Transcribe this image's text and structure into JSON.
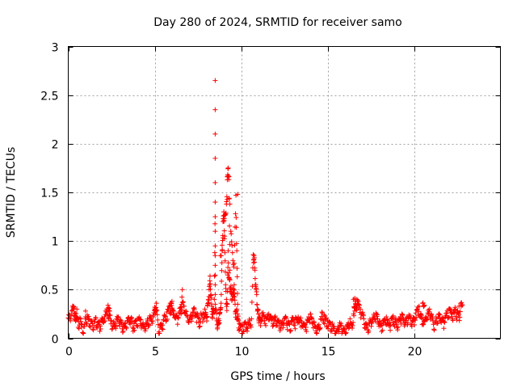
{
  "chart_data": {
    "type": "scatter",
    "title": "Day 280 of 2024, SRMTID for receiver samo",
    "xlabel": "GPS time / hours",
    "ylabel": "SRMTID / TECUs",
    "xlim": [
      0,
      25
    ],
    "ylim": [
      0,
      3
    ],
    "xticks": [
      0,
      5,
      10,
      15,
      20
    ],
    "xtick_labels": [
      "0",
      "5",
      "10",
      "15",
      "20"
    ],
    "yticks": [
      0,
      0.5,
      1,
      1.5,
      2,
      2.5,
      3
    ],
    "ytick_labels": [
      "0",
      "0.5",
      "1",
      "1.5",
      "2",
      "2.5",
      "3"
    ],
    "grid": true,
    "marker": "+",
    "color": "#ff0000",
    "series": [
      {
        "name": "samo",
        "x": [
          0.0,
          0.1,
          0.2,
          0.3,
          0.4,
          0.5,
          0.6,
          0.7,
          0.8,
          0.9,
          1.0,
          1.1,
          1.2,
          1.3,
          1.4,
          1.5,
          1.6,
          1.7,
          1.8,
          1.9,
          2.0,
          2.1,
          2.2,
          2.3,
          2.4,
          2.5,
          2.6,
          2.7,
          2.8,
          2.9,
          3.0,
          3.1,
          3.2,
          3.3,
          3.4,
          3.5,
          3.6,
          3.7,
          3.8,
          3.9,
          4.0,
          4.1,
          4.2,
          4.3,
          4.4,
          4.5,
          4.6,
          4.7,
          4.8,
          4.9,
          5.0,
          5.1,
          5.2,
          5.3,
          5.4,
          5.5,
          5.6,
          5.7,
          5.8,
          5.9,
          6.0,
          6.1,
          6.2,
          6.3,
          6.4,
          6.5,
          6.6,
          6.7,
          6.8,
          6.9,
          7.0,
          7.1,
          7.2,
          7.3,
          7.4,
          7.5,
          7.6,
          7.7,
          7.8,
          7.9,
          8.0,
          8.05,
          8.1,
          8.15,
          8.2,
          8.25,
          8.3,
          8.35,
          8.4,
          8.45,
          8.5,
          8.5,
          8.5,
          8.5,
          8.5,
          8.5,
          8.5,
          8.5,
          8.5,
          8.5,
          8.55,
          8.6,
          8.65,
          8.7,
          8.75,
          8.8,
          8.85,
          8.9,
          8.95,
          9.0,
          9.05,
          9.1,
          9.15,
          9.2,
          9.25,
          9.3,
          9.35,
          9.4,
          9.45,
          9.5,
          9.55,
          9.6,
          9.65,
          9.7,
          9.75,
          9.8,
          9.85,
          9.9,
          10.0,
          10.1,
          10.2,
          10.3,
          10.4,
          10.5,
          10.6,
          10.7,
          10.75,
          10.8,
          10.85,
          10.9,
          10.95,
          11.0,
          11.05,
          11.1,
          11.2,
          11.3,
          11.4,
          11.5,
          11.6,
          11.7,
          11.8,
          11.9,
          12.0,
          12.1,
          12.2,
          12.3,
          12.4,
          12.5,
          12.6,
          12.7,
          12.8,
          12.9,
          13.0,
          13.1,
          13.2,
          13.3,
          13.4,
          13.5,
          13.6,
          13.7,
          13.8,
          13.9,
          14.0,
          14.1,
          14.2,
          14.3,
          14.4,
          14.5,
          14.6,
          14.7,
          14.8,
          14.9,
          15.0,
          15.1,
          15.2,
          15.3,
          15.4,
          15.5,
          15.6,
          15.7,
          15.8,
          15.9,
          16.0,
          16.1,
          16.2,
          16.3,
          16.4,
          16.5,
          16.6,
          16.7,
          16.8,
          16.9,
          17.0,
          17.1,
          17.2,
          17.3,
          17.4,
          17.5,
          17.6,
          17.7,
          17.8,
          17.9,
          18.0,
          18.1,
          18.2,
          18.3,
          18.4,
          18.5,
          18.6,
          18.7,
          18.8,
          18.9,
          19.0,
          19.1,
          19.2,
          19.3,
          19.4,
          19.5,
          19.6,
          19.7,
          19.8,
          19.9,
          20.0,
          20.1,
          20.2,
          20.3,
          20.4,
          20.5,
          20.6,
          20.7,
          20.8,
          20.9,
          21.0,
          21.1,
          21.2,
          21.3,
          21.4,
          21.5,
          21.6,
          21.7,
          21.8,
          21.9,
          22.0,
          22.1,
          22.2,
          22.3,
          22.4,
          22.5,
          22.6,
          22.7,
          22.8,
          0.3,
          0.4,
          0.5,
          1.0,
          2.3,
          2.4,
          5.0,
          5.1,
          5.9,
          6.0,
          6.5,
          6.6,
          8.8,
          9.0,
          9.1,
          9.2,
          9.25,
          9.3,
          9.35,
          9.2,
          9.15,
          9.4,
          9.5,
          9.6,
          9.7,
          9.75,
          9.8,
          16.5,
          16.6,
          16.7,
          20.5,
          20.6,
          22.6
        ],
        "y": [
          0.21,
          0.24,
          0.28,
          0.33,
          0.26,
          0.19,
          0.17,
          0.2,
          0.14,
          0.12,
          0.22,
          0.24,
          0.2,
          0.18,
          0.15,
          0.17,
          0.21,
          0.16,
          0.14,
          0.18,
          0.2,
          0.22,
          0.27,
          0.3,
          0.24,
          0.18,
          0.15,
          0.16,
          0.2,
          0.22,
          0.19,
          0.14,
          0.12,
          0.16,
          0.18,
          0.21,
          0.2,
          0.17,
          0.15,
          0.18,
          0.2,
          0.22,
          0.19,
          0.14,
          0.12,
          0.16,
          0.18,
          0.21,
          0.2,
          0.22,
          0.3,
          0.36,
          0.14,
          0.11,
          0.15,
          0.19,
          0.23,
          0.27,
          0.3,
          0.33,
          0.31,
          0.28,
          0.24,
          0.22,
          0.27,
          0.32,
          0.37,
          0.33,
          0.28,
          0.22,
          0.2,
          0.24,
          0.27,
          0.3,
          0.26,
          0.22,
          0.2,
          0.24,
          0.26,
          0.3,
          0.22,
          0.34,
          0.4,
          0.5,
          0.64,
          0.45,
          0.33,
          0.25,
          0.3,
          0.4,
          1.4,
          1.25,
          1.1,
          0.95,
          0.85,
          0.75,
          0.65,
          0.55,
          0.45,
          0.35,
          0.3,
          0.18,
          0.14,
          0.2,
          0.25,
          0.3,
          0.45,
          0.9,
          1.2,
          1.3,
          1.05,
          0.55,
          0.4,
          0.35,
          0.9,
          0.62,
          0.6,
          0.52,
          0.48,
          0.45,
          0.5,
          0.55,
          0.35,
          0.28,
          0.3,
          0.25,
          0.18,
          0.15,
          0.13,
          0.12,
          0.16,
          0.14,
          0.16,
          0.18,
          0.2,
          0.86,
          0.85,
          0.7,
          0.55,
          0.45,
          0.3,
          0.25,
          0.22,
          0.2,
          0.26,
          0.24,
          0.22,
          0.21,
          0.25,
          0.23,
          0.2,
          0.19,
          0.21,
          0.18,
          0.16,
          0.15,
          0.18,
          0.2,
          0.21,
          0.16,
          0.14,
          0.18,
          0.21,
          0.17,
          0.2,
          0.22,
          0.19,
          0.17,
          0.15,
          0.14,
          0.16,
          0.22,
          0.25,
          0.2,
          0.17,
          0.12,
          0.1,
          0.14,
          0.2,
          0.26,
          0.24,
          0.2,
          0.18,
          0.17,
          0.14,
          0.12,
          0.1,
          0.08,
          0.12,
          0.16,
          0.13,
          0.1,
          0.09,
          0.12,
          0.16,
          0.2,
          0.14,
          0.25,
          0.32,
          0.4,
          0.35,
          0.3,
          0.25,
          0.2,
          0.15,
          0.13,
          0.16,
          0.18,
          0.2,
          0.23,
          0.26,
          0.2,
          0.17,
          0.15,
          0.18,
          0.2,
          0.22,
          0.18,
          0.16,
          0.2,
          0.23,
          0.19,
          0.16,
          0.18,
          0.22,
          0.25,
          0.2,
          0.18,
          0.22,
          0.24,
          0.2,
          0.18,
          0.21,
          0.26,
          0.3,
          0.33,
          0.25,
          0.2,
          0.18,
          0.22,
          0.26,
          0.3,
          0.25,
          0.18,
          0.16,
          0.2,
          0.22,
          0.24,
          0.2,
          0.18,
          0.22,
          0.26,
          0.3,
          0.28,
          0.25,
          0.28,
          0.3,
          0.27,
          0.24,
          0.36,
          0.34,
          0.3,
          0.22,
          0.3,
          0.28,
          0.34,
          0.28,
          0.32,
          0.29,
          0.36,
          0.38,
          0.27,
          0.5,
          0.85,
          1.2,
          1.27,
          1.63,
          1.75,
          1.66,
          0.7,
          1.43,
          1.38,
          1.1,
          0.88,
          0.77,
          1.47,
          0.9,
          0.35,
          0.4,
          0.38,
          0.32,
          0.36,
          0.34,
          0.33
        ],
        "highlights_x": [
          8.5,
          8.5,
          8.5,
          8.5,
          8.5,
          9.8,
          9.2,
          9.25,
          9.3,
          9.35
        ],
        "highlights_y": [
          2.65,
          2.35,
          2.1,
          1.85,
          1.6,
          1.48,
          1.66,
          1.75,
          1.44,
          1.38
        ]
      }
    ]
  }
}
